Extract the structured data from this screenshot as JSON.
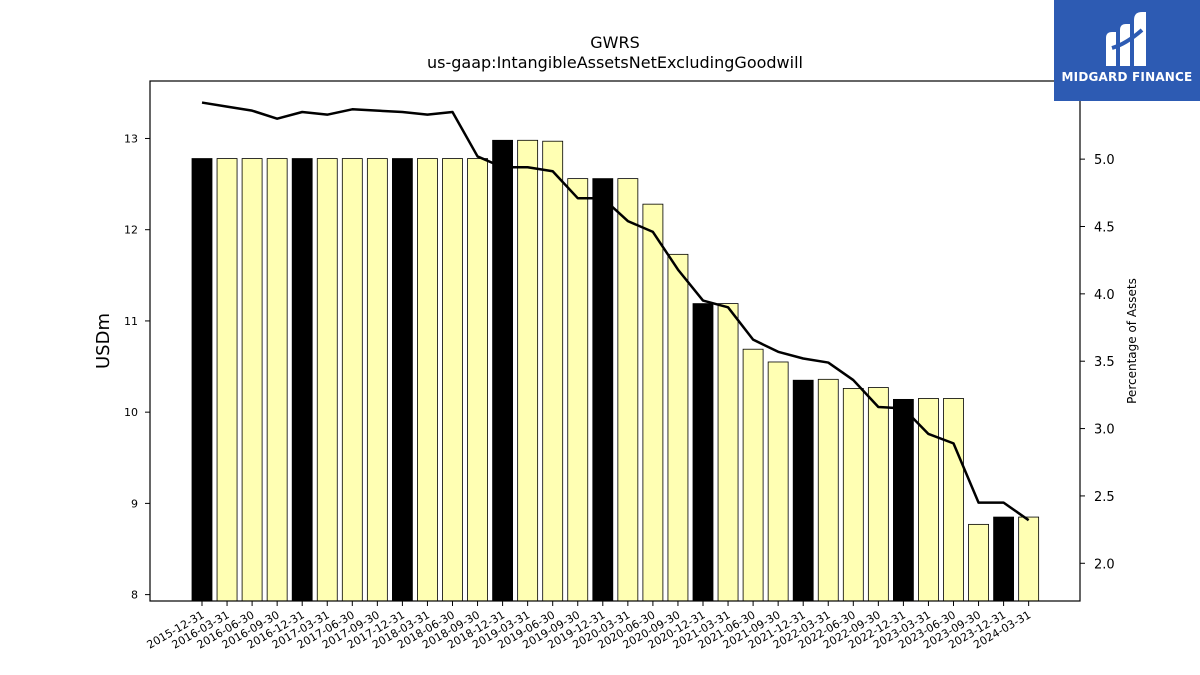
{
  "chart_data": {
    "type": "bar",
    "title": "GWRS",
    "subtitle": "us-gaap:IntangibleAssetsNetExcludingGoodwill",
    "ylabel": "USDm",
    "y2label": "Percentage of Assets",
    "ylim": [
      7.93,
      13.63
    ],
    "y2lim": [
      1.72,
      5.58
    ],
    "yticks": [
      8,
      9,
      10,
      11,
      12,
      13
    ],
    "y2ticks": [
      2.0,
      2.5,
      3.0,
      3.5,
      4.0,
      4.5,
      5.0
    ],
    "categories": [
      "2015-12-31",
      "2016-03-31",
      "2016-06-30",
      "2016-09-30",
      "2016-12-31",
      "2017-03-31",
      "2017-06-30",
      "2017-09-30",
      "2017-12-31",
      "2018-03-31",
      "2018-06-30",
      "2018-09-30",
      "2018-12-31",
      "2019-03-31",
      "2019-06-30",
      "2019-09-30",
      "2019-12-31",
      "2020-03-31",
      "2020-06-30",
      "2020-09-30",
      "2020-12-31",
      "2021-03-31",
      "2021-06-30",
      "2021-09-30",
      "2021-12-31",
      "2022-03-31",
      "2022-06-30",
      "2022-09-30",
      "2022-12-31",
      "2023-03-31",
      "2023-06-30",
      "2023-09-30",
      "2023-12-31",
      "2024-03-31"
    ],
    "series": [
      {
        "type": "bar",
        "values": [
          12.78,
          12.78,
          12.78,
          12.78,
          12.78,
          12.78,
          12.78,
          12.78,
          12.78,
          12.78,
          12.78,
          12.78,
          12.98,
          12.98,
          12.97,
          12.56,
          12.56,
          12.56,
          12.28,
          11.73,
          11.19,
          11.19,
          10.69,
          10.55,
          10.35,
          10.36,
          10.26,
          10.27,
          10.14,
          10.15,
          10.15,
          8.77,
          8.85,
          8.85
        ],
        "year_end_color": "#000000",
        "quarter_color": "#ffffb3"
      },
      {
        "type": "line",
        "axis": "right",
        "color": "#000000",
        "values": [
          5.42,
          5.39,
          5.36,
          5.3,
          5.35,
          5.33,
          5.37,
          5.36,
          5.35,
          5.33,
          5.35,
          5.02,
          4.94,
          4.94,
          4.91,
          4.71,
          4.71,
          4.54,
          4.46,
          4.18,
          3.95,
          3.9,
          3.66,
          3.57,
          3.52,
          3.49,
          3.36,
          3.16,
          3.15,
          2.96,
          2.89,
          2.45,
          2.45,
          2.32
        ]
      }
    ],
    "grid": false
  },
  "logo": {
    "text": "MIDGARD FINANCE",
    "background": "#2d5bb3"
  }
}
